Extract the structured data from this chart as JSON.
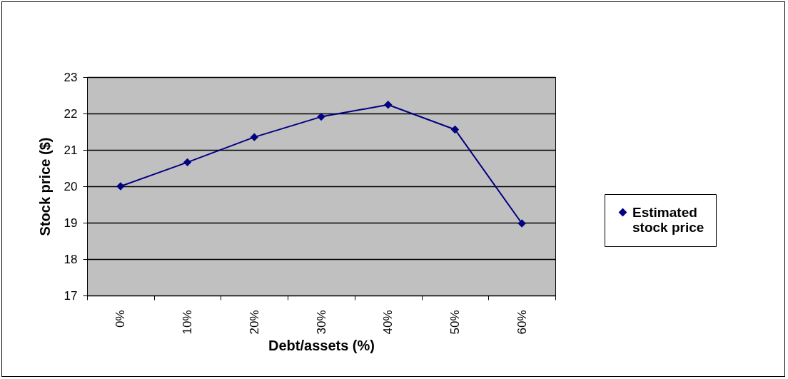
{
  "chart_data": {
    "type": "line",
    "xlabel": "Debt/assets (%)",
    "ylabel": "Stock price ($)",
    "categories": [
      "0%",
      "10%",
      "20%",
      "30%",
      "40%",
      "50%",
      "60%"
    ],
    "series": [
      {
        "name": "Estimated stock price",
        "color": "#000080",
        "values": [
          20.0,
          20.66,
          21.35,
          21.91,
          22.24,
          21.56,
          18.98
        ]
      }
    ],
    "ylim": [
      17,
      23
    ],
    "yticks": [
      17,
      18,
      19,
      20,
      21,
      22,
      23
    ],
    "grid": "y",
    "legend": "right",
    "marker": "diamond"
  }
}
